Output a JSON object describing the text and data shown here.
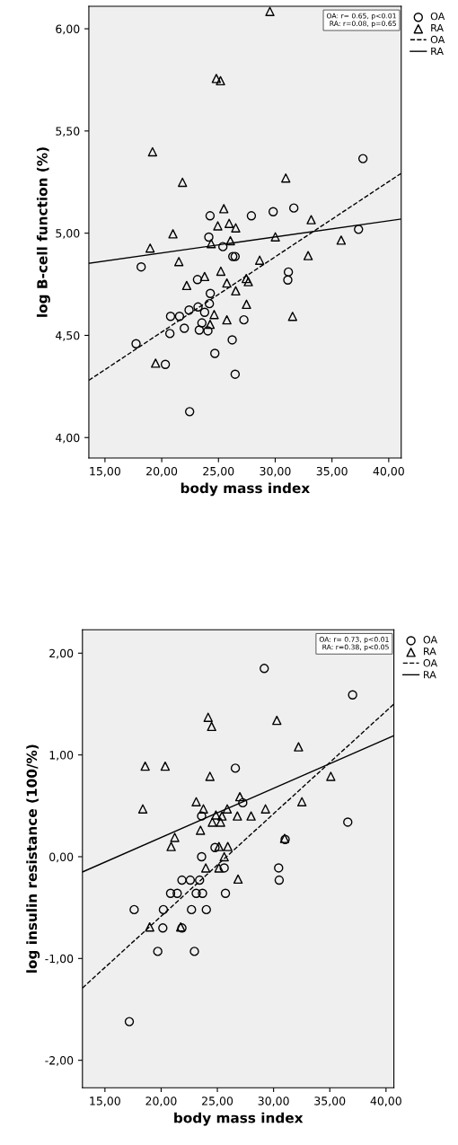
{
  "chart_data": [
    {
      "type": "scatter",
      "xlabel": "body mass index",
      "ylabel": "log B-cell function (%)",
      "annotations": [
        "OA: r= 0.65, p<0.01",
        "RA: r=0.08, p=0.65"
      ],
      "xlim": [
        13.58,
        41.1
      ],
      "ylim": [
        3.9,
        6.11
      ],
      "xticks": [
        {
          "value": 15,
          "label": "15,00"
        },
        {
          "value": 20,
          "label": "20,00"
        },
        {
          "value": 25,
          "label": "25,00"
        },
        {
          "value": 30,
          "label": "30,00"
        },
        {
          "value": 35,
          "label": "35,00"
        },
        {
          "value": 40,
          "label": "40,00"
        }
      ],
      "yticks": [
        {
          "value": 4,
          "label": "4,00"
        },
        {
          "value": 4.5,
          "label": "4,50"
        },
        {
          "value": 5,
          "label": "5,00"
        },
        {
          "value": 5.5,
          "label": "5,50"
        },
        {
          "value": 6,
          "label": "6,00"
        }
      ],
      "grid": false,
      "legend": "right",
      "series": [
        {
          "name": "OA",
          "type": "scatter",
          "marker": "circle",
          "color": "#000000",
          "x": [
            37.73,
            24.26,
            27.9,
            29.82,
            31.64,
            37.34,
            24.15,
            25.39,
            26.26,
            26.47,
            18.19,
            31.16,
            31.11,
            23.15,
            24.28,
            24.2,
            23.2,
            22.41,
            20.78,
            21.57,
            23.78,
            23.54,
            21.99,
            23.31,
            24.07,
            27.24,
            20.72,
            17.74,
            20.32,
            26.21,
            24.68,
            26.47,
            22.46
          ],
          "values": [
            5.365,
            5.085,
            5.085,
            5.105,
            5.123,
            5.019,
            4.981,
            4.934,
            4.886,
            4.886,
            4.835,
            4.81,
            4.771,
            4.773,
            4.705,
            4.655,
            4.639,
            4.624,
            4.593,
            4.593,
            4.613,
            4.561,
            4.535,
            4.526,
            4.522,
            4.576,
            4.509,
            4.459,
            4.358,
            4.478,
            4.412,
            4.31,
            4.127
          ]
        },
        {
          "name": "RA",
          "type": "scatter",
          "marker": "triangle",
          "color": "#000000",
          "x": [
            29.53,
            24.81,
            25.18,
            19.19,
            21.83,
            30.93,
            25.47,
            33.17,
            24.94,
            25.94,
            26.52,
            20.99,
            18.98,
            24.36,
            26.05,
            30.01,
            35.81,
            21.51,
            28.63,
            32.9,
            25.21,
            23.78,
            22.2,
            25.74,
            27.45,
            27.63,
            26.52,
            27.47,
            24.62,
            25.74,
            31.53,
            24.26,
            19.46
          ],
          "values": [
            6.085,
            5.757,
            5.746,
            5.398,
            5.249,
            5.27,
            5.12,
            5.066,
            5.036,
            5.048,
            5.026,
            4.997,
            4.927,
            4.949,
            4.963,
            4.982,
            4.966,
            4.861,
            4.868,
            4.89,
            4.814,
            4.788,
            4.744,
            4.756,
            4.778,
            4.763,
            4.718,
            4.652,
            4.602,
            4.576,
            4.593,
            4.554,
            4.364
          ]
        },
        {
          "name": "OA",
          "type": "line",
          "line_style": "dashed",
          "color": "#000000",
          "x": [
            13.58,
            41.1
          ],
          "values": [
            4.28,
            5.293
          ]
        },
        {
          "name": "RA",
          "type": "line",
          "line_style": "solid",
          "color": "#000000",
          "x": [
            13.58,
            41.1
          ],
          "values": [
            4.853,
            5.069
          ]
        }
      ]
    },
    {
      "type": "scatter",
      "xlabel": "body mass index",
      "ylabel": "log insulin resistance (100/%)",
      "annotations": [
        "OA: r= 0.73, p<0.01",
        "RA: r=0.38, p<0.05"
      ],
      "xlim": [
        13.0,
        40.7
      ],
      "ylim": [
        -2.27,
        2.23
      ],
      "xticks": [
        {
          "value": 15,
          "label": "15,00"
        },
        {
          "value": 20,
          "label": "20,00"
        },
        {
          "value": 25,
          "label": "25,00"
        },
        {
          "value": 30,
          "label": "30,00"
        },
        {
          "value": 35,
          "label": "35,00"
        },
        {
          "value": 40,
          "label": "40,00"
        }
      ],
      "yticks": [
        {
          "value": -2,
          "label": "-2,00"
        },
        {
          "value": -1,
          "label": "-1,00"
        },
        {
          "value": 0,
          "label": "0,00"
        },
        {
          "value": 1,
          "label": "1,00"
        },
        {
          "value": 2,
          "label": "2,00"
        }
      ],
      "grid": false,
      "legend": "right",
      "series": [
        {
          "name": "OA",
          "type": "scatter",
          "marker": "circle",
          "color": "#000000",
          "x": [
            29.17,
            37.03,
            26.6,
            27.26,
            23.6,
            36.6,
            31.03,
            24.79,
            23.6,
            25.61,
            30.45,
            30.5,
            21.85,
            22.59,
            23.42,
            20.84,
            21.43,
            23.12,
            23.68,
            25.72,
            17.6,
            20.2,
            22.7,
            24.02,
            20.15,
            21.85,
            19.7,
            22.96,
            17.17
          ],
          "values": [
            1.85,
            1.59,
            0.87,
            0.53,
            0.4,
            0.34,
            0.17,
            0.09,
            0.0,
            -0.11,
            -0.11,
            -0.23,
            -0.23,
            -0.23,
            -0.23,
            -0.36,
            -0.36,
            -0.36,
            -0.36,
            -0.36,
            -0.52,
            -0.52,
            -0.52,
            -0.52,
            -0.7,
            -0.7,
            -0.93,
            -0.93,
            -1.62
          ]
        },
        {
          "name": "RA",
          "type": "scatter",
          "marker": "triangle",
          "color": "#000000",
          "x": [
            24.18,
            24.49,
            30.29,
            32.22,
            18.58,
            20.36,
            24.34,
            35.09,
            27.0,
            23.12,
            32.52,
            18.37,
            23.76,
            25.88,
            29.28,
            24.87,
            25.41,
            26.78,
            28.0,
            24.55,
            25.29,
            23.5,
            21.21,
            20.89,
            25.14,
            25.93,
            25.61,
            23.97,
            25.14,
            26.84,
            30.98,
            18.98,
            21.74
          ],
          "values": [
            1.37,
            1.28,
            1.34,
            1.08,
            0.89,
            0.89,
            0.79,
            0.79,
            0.59,
            0.54,
            0.54,
            0.47,
            0.47,
            0.47,
            0.47,
            0.41,
            0.4,
            0.4,
            0.4,
            0.34,
            0.34,
            0.26,
            0.19,
            0.1,
            0.1,
            0.1,
            0.0,
            -0.11,
            -0.11,
            -0.22,
            0.18,
            -0.69,
            -0.69
          ]
        },
        {
          "name": "OA",
          "type": "line",
          "line_style": "dashed",
          "color": "#000000",
          "x": [
            13.0,
            40.7
          ],
          "values": [
            -1.29,
            1.5
          ]
        },
        {
          "name": "RA",
          "type": "line",
          "line_style": "solid",
          "color": "#000000",
          "x": [
            13.0,
            40.7
          ],
          "values": [
            -0.15,
            1.19
          ]
        }
      ]
    }
  ]
}
